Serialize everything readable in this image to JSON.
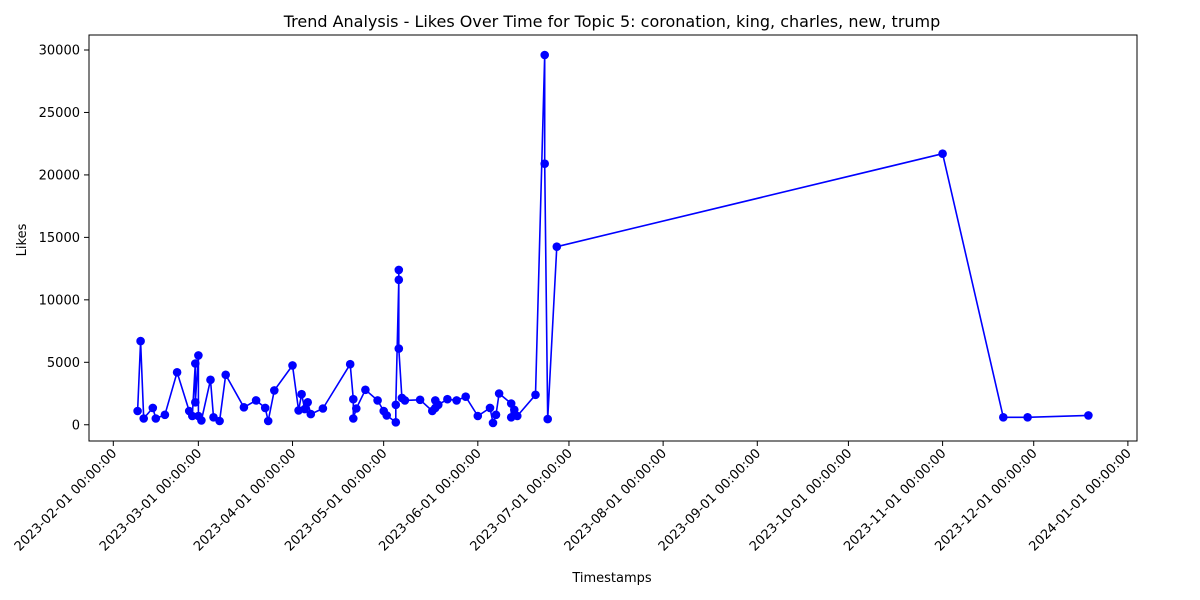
{
  "chart_data": {
    "type": "line",
    "title": "Trend Analysis - Likes Over Time for Topic 5: coronation, king, charles, new, trump",
    "xlabel": "Timestamps",
    "ylabel": "Likes",
    "x_ticks": [
      "2023-02-01 00:00:00",
      "2023-03-01 00:00:00",
      "2023-04-01 00:00:00",
      "2023-05-01 00:00:00",
      "2023-06-01 00:00:00",
      "2023-07-01 00:00:00",
      "2023-08-01 00:00:00",
      "2023-09-01 00:00:00",
      "2023-10-01 00:00:00",
      "2023-11-01 00:00:00",
      "2023-12-01 00:00:00",
      "2024-01-01 00:00:00"
    ],
    "y_ticks": [
      0,
      5000,
      10000,
      15000,
      20000,
      25000,
      30000
    ],
    "xlim": [
      "2023-01-24",
      "2024-01-04"
    ],
    "ylim": [
      -1300,
      31200
    ],
    "grid": false,
    "line_color": "#0000ff",
    "series": [
      {
        "x": [
          "2023-02-09",
          "2023-02-10",
          "2023-02-11",
          "2023-02-14",
          "2023-02-15",
          "2023-02-18",
          "2023-02-22",
          "2023-02-26",
          "2023-02-27",
          "2023-02-28",
          "2023-02-28",
          "2023-03-01",
          "2023-03-01",
          "2023-03-02",
          "2023-03-05",
          "2023-03-06",
          "2023-03-08",
          "2023-03-10",
          "2023-03-16",
          "2023-03-20",
          "2023-03-23",
          "2023-03-24",
          "2023-03-26",
          "2023-04-01",
          "2023-04-03",
          "2023-04-04",
          "2023-04-05",
          "2023-04-06",
          "2023-04-07",
          "2023-04-11",
          "2023-04-20",
          "2023-04-21",
          "2023-04-21",
          "2023-04-22",
          "2023-04-25",
          "2023-04-29",
          "2023-05-01",
          "2023-05-02",
          "2023-05-05",
          "2023-05-05",
          "2023-05-06",
          "2023-05-06",
          "2023-05-06",
          "2023-05-07",
          "2023-05-08",
          "2023-05-13",
          "2023-05-17",
          "2023-05-18",
          "2023-05-18",
          "2023-05-19",
          "2023-05-22",
          "2023-05-25",
          "2023-05-28",
          "2023-06-01",
          "2023-06-05",
          "2023-06-06",
          "2023-06-07",
          "2023-06-08",
          "2023-06-12",
          "2023-06-12",
          "2023-06-13",
          "2023-06-14",
          "2023-06-20",
          "2023-06-23",
          "2023-06-23",
          "2023-06-24",
          "2023-06-27",
          "2023-11-01",
          "2023-11-21",
          "2023-11-29",
          "2023-12-19"
        ],
        "y": [
          1100,
          6700,
          500,
          1350,
          500,
          800,
          4200,
          1100,
          700,
          4900,
          1800,
          5550,
          700,
          350,
          3600,
          600,
          300,
          4000,
          1400,
          1950,
          1350,
          300,
          2750,
          4750,
          1150,
          2450,
          1250,
          1800,
          850,
          1300,
          4850,
          2050,
          500,
          1300,
          2800,
          1950,
          1100,
          750,
          200,
          1600,
          11600,
          12400,
          6100,
          2150,
          1950,
          2000,
          1100,
          1950,
          1350,
          1600,
          2050,
          1950,
          2250,
          700,
          1350,
          150,
          800,
          2500,
          1700,
          600,
          1200,
          700,
          2400,
          29600,
          20900,
          450,
          14250,
          21700,
          600,
          600,
          750
        ]
      }
    ]
  }
}
